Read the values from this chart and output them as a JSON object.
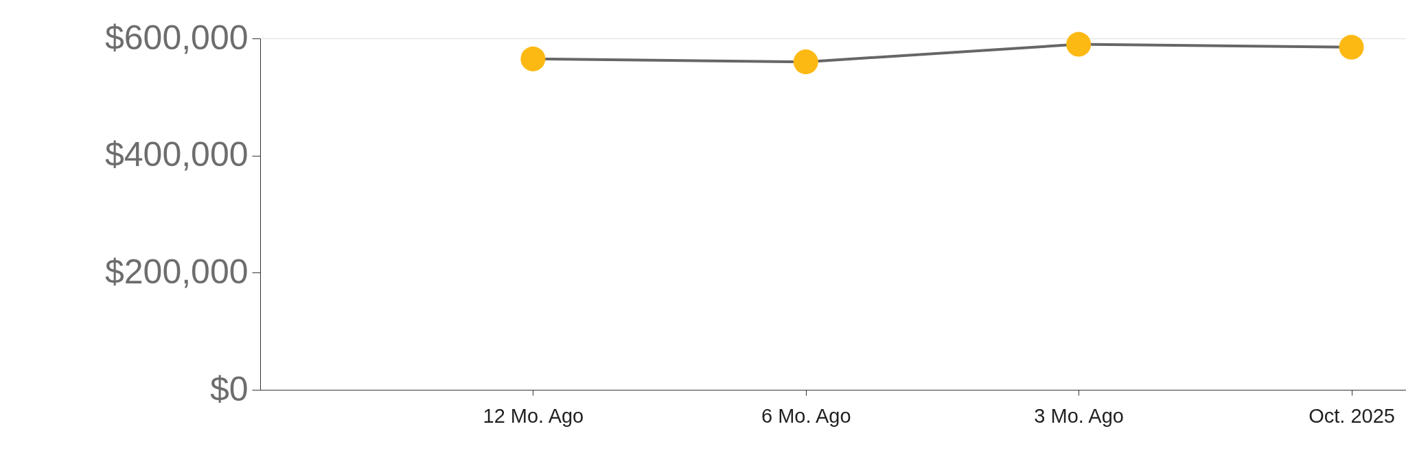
{
  "chart_data": {
    "type": "line",
    "categories": [
      "12 Mo. Ago",
      "6 Mo. Ago",
      "3 Mo. Ago",
      "Oct. 2025"
    ],
    "series": [
      {
        "color": "#666666",
        "colors": [
          "#fdb913",
          "#fdb913",
          "#fdb913",
          "#fdb913"
        ],
        "values": [
          565000,
          560000,
          590000,
          585000
        ]
      }
    ],
    "marker": "circle",
    "ylim": [
      0,
      600000
    ],
    "yticks": [
      {
        "value": 0,
        "label": "$0"
      },
      {
        "value": 200000,
        "label": "$200,000"
      },
      {
        "value": 400000,
        "label": "$400,000"
      },
      {
        "value": 600000,
        "label": "$600,000"
      }
    ],
    "grid": false
  }
}
